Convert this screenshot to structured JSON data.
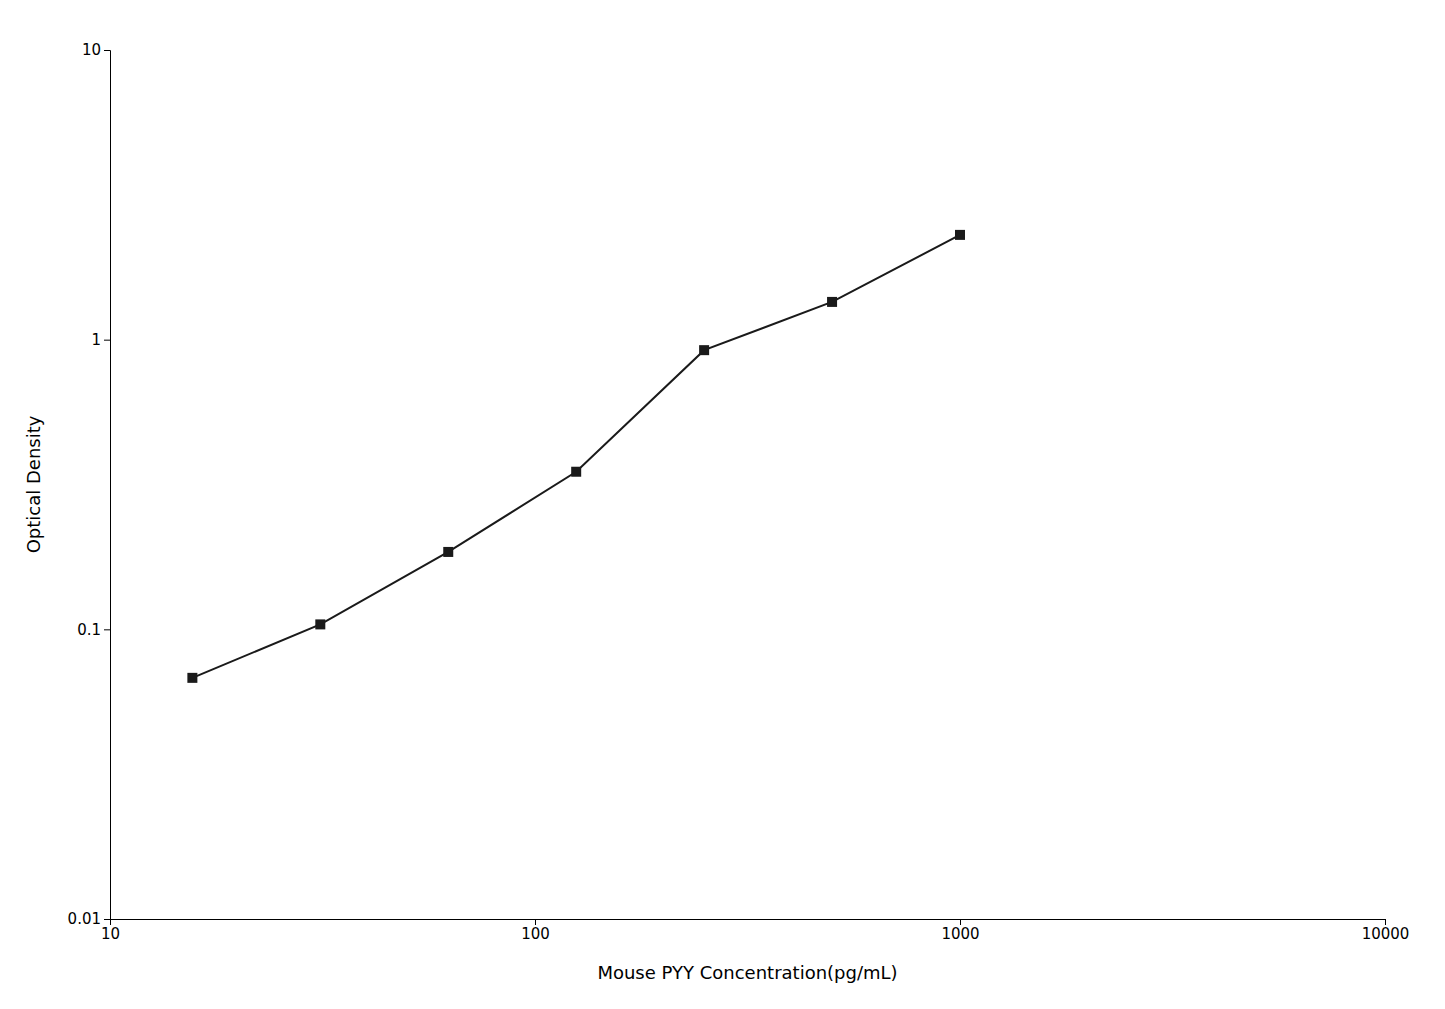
{
  "chart_data": {
    "type": "line",
    "log": true,
    "grid": false,
    "xlabel": "Mouse PYY Concentration(pg/mL)",
    "ylabel": "Optical Density",
    "x": [
      15.625,
      31.25,
      62.5,
      125,
      250,
      500,
      1000
    ],
    "values": [
      0.068,
      0.104,
      0.185,
      0.35,
      0.92,
      1.35,
      2.3
    ],
    "color": "#1a1a1a",
    "marker": "square",
    "xlim": [
      10,
      10000
    ],
    "ylim": [
      0.01,
      10
    ],
    "xticks": [
      10,
      100,
      1000,
      10000
    ],
    "yticks": [
      0.01,
      0.1,
      1,
      10
    ]
  }
}
